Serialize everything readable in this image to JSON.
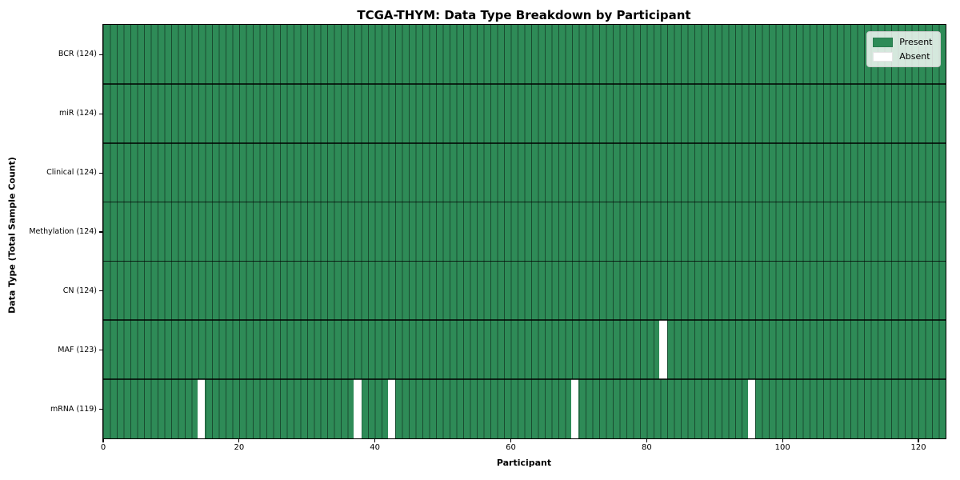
{
  "figure": {
    "background": "#ffffff"
  },
  "chart_data": {
    "type": "heatmap",
    "title": "TCGA-THYM: Data Type Breakdown by Participant",
    "xlabel": "Participant",
    "ylabel": "Data Type (Total Sample Count)",
    "legend_position": "upper right",
    "xlim": [
      0,
      124
    ],
    "n_participants": 124,
    "x_ticks": [
      0,
      20,
      40,
      60,
      80,
      100,
      120
    ],
    "rows": [
      {
        "label": "BCR (124)",
        "data_type": "BCR",
        "present_count": 124,
        "absent_participants": []
      },
      {
        "label": "miR (124)",
        "data_type": "miR",
        "present_count": 124,
        "absent_participants": []
      },
      {
        "label": "Clinical (124)",
        "data_type": "Clinical",
        "present_count": 124,
        "absent_participants": []
      },
      {
        "label": "Methylation (124)",
        "data_type": "Methylation",
        "present_count": 124,
        "absent_participants": []
      },
      {
        "label": "CN (124)",
        "data_type": "CN",
        "present_count": 124,
        "absent_participants": []
      },
      {
        "label": "MAF (123)",
        "data_type": "MAF",
        "present_count": 123,
        "absent_participants": [
          82
        ]
      },
      {
        "label": "mRNA (119)",
        "data_type": "mRNA",
        "present_count": 119,
        "absent_participants": [
          14,
          37,
          42,
          69,
          95
        ]
      }
    ],
    "legend": [
      {
        "label": "Present",
        "color": "#2e8b57"
      },
      {
        "label": "Absent",
        "color": "#ffffff"
      }
    ],
    "colors": {
      "present": "#2e8b57",
      "absent": "#ffffff",
      "column_line": "rgba(0,0,0,0.45)",
      "row_line": "rgba(0,0,0,0.75)",
      "axis": "#000000",
      "legend_border": "#cccccc"
    }
  }
}
